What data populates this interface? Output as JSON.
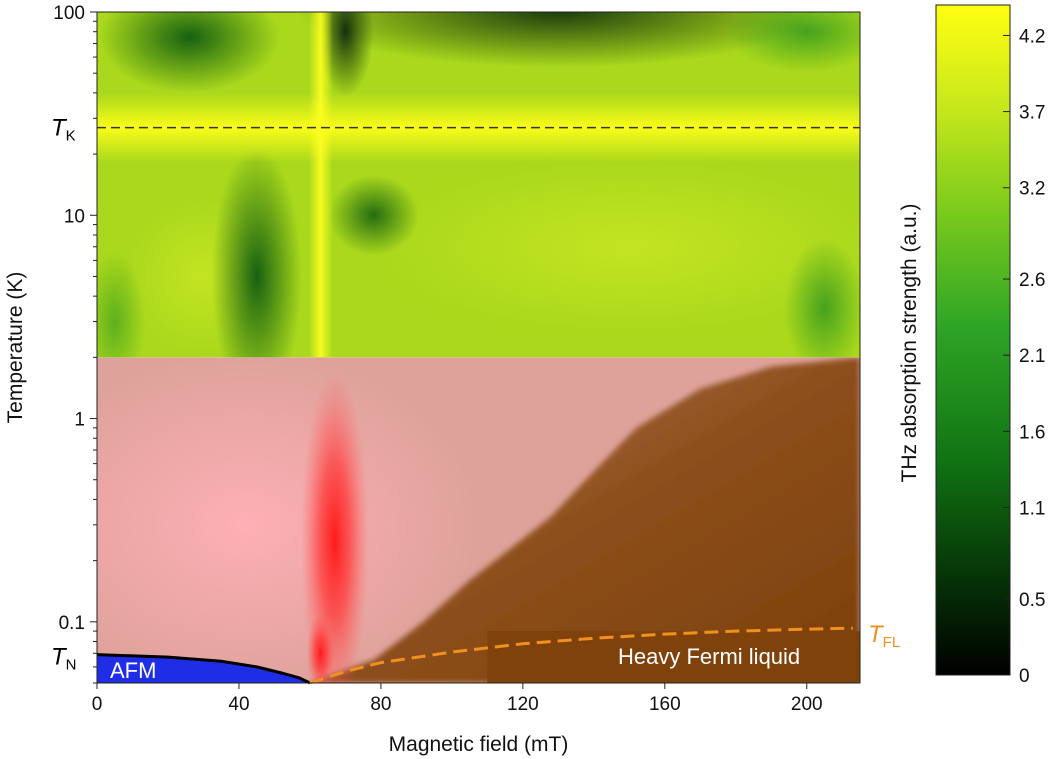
{
  "chart_data": {
    "type": "heatmap",
    "xlabel": "Magnetic field (mT)",
    "ylabel": "Temperature (K)",
    "xlim": [
      0,
      215
    ],
    "ylim": [
      0.05,
      100
    ],
    "yscale": "log",
    "x_ticks": [
      0,
      40,
      80,
      120,
      160,
      200
    ],
    "y_ticks": [
      {
        "value": 0.1,
        "label": "0.1"
      },
      {
        "value": 1,
        "label": "1"
      },
      {
        "value": 10,
        "label": "10"
      },
      {
        "value": 100,
        "label": "100"
      }
    ],
    "colorbar": {
      "label": "THz absorption strength (a.u.)",
      "min": 0,
      "max": 4.4,
      "ticks": [
        "0",
        "0.5",
        "1.1",
        "1.6",
        "2.1",
        "2.6",
        "3.2",
        "3.7",
        "4.2"
      ],
      "colors": [
        "#000000",
        "#0d4a0d",
        "#1f8a1f",
        "#6cc21c",
        "#c5e61e",
        "#ffff14"
      ]
    },
    "special_lines": {
      "TK": {
        "label_main": "T",
        "label_sub": "K",
        "value": 27,
        "style": "dashed",
        "color": "#333333"
      },
      "TN": {
        "label_main": "T",
        "label_sub": "N",
        "value": 0.069
      },
      "TFL": {
        "label_main": "T",
        "label_sub": "FL",
        "color": "#f0901e",
        "style": "dashed",
        "points": [
          [
            60,
            0.05
          ],
          [
            70,
            0.057
          ],
          [
            80,
            0.063
          ],
          [
            100,
            0.071
          ],
          [
            120,
            0.078
          ],
          [
            140,
            0.083
          ],
          [
            160,
            0.087
          ],
          [
            180,
            0.09
          ],
          [
            200,
            0.092
          ],
          [
            213,
            0.093
          ]
        ]
      },
      "AFM_boundary": {
        "points": [
          [
            0,
            0.069
          ],
          [
            20,
            0.067
          ],
          [
            35,
            0.064
          ],
          [
            45,
            0.06
          ],
          [
            52,
            0.056
          ],
          [
            57,
            0.053
          ],
          [
            60,
            0.05
          ]
        ]
      }
    },
    "regions": {
      "afm": {
        "label": "AFM",
        "color": "#1f2ee6"
      },
      "heavy_fermi_liquid": {
        "label": "Heavy Fermi liquid",
        "color": "#7f420b"
      },
      "low_temperature_color": "#dfa29b",
      "thz_boundary_temperature": 2
    }
  }
}
